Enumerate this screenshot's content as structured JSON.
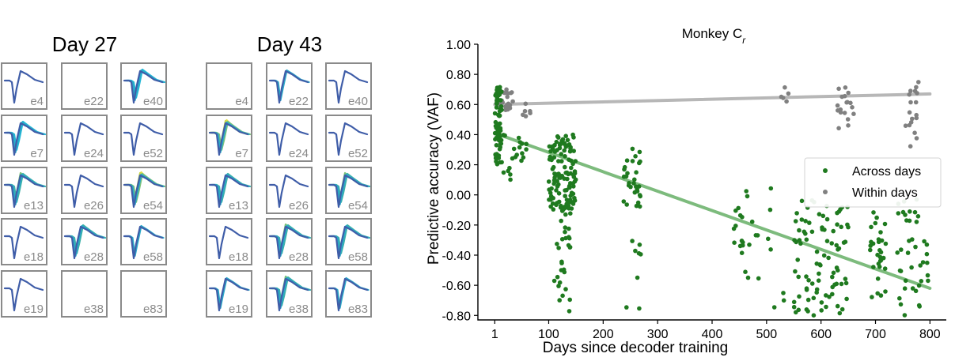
{
  "panels": [
    {
      "title": "Day 27",
      "cells": [
        {
          "label": "e4",
          "waves": [
            "#3f5da8"
          ]
        },
        {
          "label": "e22",
          "waves": []
        },
        {
          "label": "e40",
          "waves": [
            "#3f5da8",
            "#29a9c8",
            "#22b7d6"
          ]
        },
        {
          "label": "e7",
          "waves": [
            "#3f5da8",
            "#29a9c8",
            "#22b7d6"
          ]
        },
        {
          "label": "e24",
          "waves": [
            "#3f5da8"
          ]
        },
        {
          "label": "e52",
          "waves": [
            "#3f5da8"
          ]
        },
        {
          "label": "e13",
          "waves": [
            "#3f5da8",
            "#29a9c8",
            "#3bb0a8",
            "#7ac27a"
          ]
        },
        {
          "label": "e26",
          "waves": [
            "#3f5da8"
          ]
        },
        {
          "label": "e54",
          "waves": [
            "#3f5da8",
            "#29a9c8",
            "#7ac27a",
            "#c9d84a",
            "#e4e04a"
          ]
        },
        {
          "label": "e18",
          "waves": [
            "#3f5da8"
          ]
        },
        {
          "label": "e28",
          "waves": [
            "#3f5da8",
            "#29a9c8",
            "#3bb0a8"
          ]
        },
        {
          "label": "e58",
          "waves": [
            "#3f5da8",
            "#29a9c8"
          ]
        },
        {
          "label": "e19",
          "waves": [
            "#3f5da8"
          ]
        },
        {
          "label": "e38",
          "waves": []
        },
        {
          "label": "e83",
          "waves": []
        }
      ]
    },
    {
      "title": "Day 43",
      "cells": [
        {
          "label": "e4",
          "waves": []
        },
        {
          "label": "e22",
          "waves": [
            "#3f5da8",
            "#29a9c8"
          ]
        },
        {
          "label": "e40",
          "waves": [
            "#3f5da8"
          ]
        },
        {
          "label": "e7",
          "waves": [
            "#3f5da8",
            "#29a9c8",
            "#7ac27a",
            "#c9d84a",
            "#e4e04a"
          ]
        },
        {
          "label": "e24",
          "waves": [
            "#3f5da8"
          ]
        },
        {
          "label": "e52",
          "waves": [
            "#3f5da8"
          ]
        },
        {
          "label": "e13",
          "waves": [
            "#3f5da8",
            "#29a9c8",
            "#3bb0a8"
          ]
        },
        {
          "label": "e26",
          "waves": [
            "#3f5da8"
          ]
        },
        {
          "label": "e54",
          "waves": [
            "#3f5da8",
            "#29a9c8",
            "#3bb0a8",
            "#7ac27a"
          ]
        },
        {
          "label": "e18",
          "waves": [
            "#3f5da8"
          ]
        },
        {
          "label": "e28",
          "waves": [
            "#3f5da8",
            "#29a9c8",
            "#3bb0a8",
            "#7ac27a"
          ]
        },
        {
          "label": "e58",
          "waves": [
            "#3f5da8",
            "#29a9c8",
            "#3bb0a8"
          ]
        },
        {
          "label": "e19",
          "waves": [
            "#3f5da8",
            "#29a9c8"
          ]
        },
        {
          "label": "e38",
          "waves": [
            "#3f5da8",
            "#29a9c8",
            "#3bb0a8",
            "#7ac27a"
          ]
        },
        {
          "label": "e83",
          "waves": [
            "#3f5da8",
            "#29a9c8"
          ]
        }
      ]
    }
  ],
  "chart_data": {
    "type": "scatter",
    "title": "Monkey C",
    "title_subscript": "r",
    "xlabel": "Days since decoder training",
    "ylabel": "Predictive accuracy (VAF)",
    "xlim": [
      -30,
      830
    ],
    "ylim": [
      -0.83,
      1.0
    ],
    "xticks": [
      1,
      100,
      200,
      300,
      400,
      500,
      600,
      700,
      800
    ],
    "yticks": [
      -0.8,
      -0.6,
      -0.4,
      -0.2,
      0.0,
      0.2,
      0.4,
      0.6,
      0.8,
      1.0
    ],
    "ytick_labels": [
      "-0.80",
      "-0.60",
      "-0.40",
      "-0.20",
      "0.00",
      "0.20",
      "0.40",
      "0.60",
      "0.80",
      "1.00"
    ],
    "legend_position": "right",
    "series": [
      {
        "name": "Across days",
        "color": "#1f7a1f",
        "trend": {
          "x": [
            1,
            800
          ],
          "y": [
            0.41,
            -0.62
          ],
          "color": "#7dbb7d"
        },
        "clusters": [
          {
            "x": [
              1,
              14
            ],
            "y": [
              0.2,
              0.72
            ],
            "n": 70
          },
          {
            "x": [
              15,
              60
            ],
            "y": [
              0.1,
              0.4
            ],
            "n": 20
          },
          {
            "x": [
              100,
              150
            ],
            "y": [
              -0.1,
              0.4
            ],
            "n": 120
          },
          {
            "x": [
              110,
              140
            ],
            "y": [
              -0.78,
              -0.1
            ],
            "n": 30
          },
          {
            "x": [
              235,
              270
            ],
            "y": [
              -0.1,
              0.32
            ],
            "n": 30
          },
          {
            "x": [
              235,
              270
            ],
            "y": [
              -0.76,
              -0.25
            ],
            "n": 8
          },
          {
            "x": [
              440,
              470
            ],
            "y": [
              -0.4,
              -0.03
            ],
            "n": 12
          },
          {
            "x": [
              460,
              540
            ],
            "y": [
              -0.8,
              0.1
            ],
            "n": 16
          },
          {
            "x": [
              550,
              600
            ],
            "y": [
              -0.8,
              0.05
            ],
            "n": 45
          },
          {
            "x": [
              600,
              650
            ],
            "y": [
              -0.8,
              -0.05
            ],
            "n": 45
          },
          {
            "x": [
              690,
              720
            ],
            "y": [
              -0.7,
              -0.1
            ],
            "n": 30
          },
          {
            "x": [
              740,
              800
            ],
            "y": [
              -0.8,
              0.0
            ],
            "n": 40
          }
        ]
      },
      {
        "name": "Within days",
        "color": "#808080",
        "trend": {
          "x": [
            1,
            800
          ],
          "y": [
            0.6,
            0.67
          ],
          "color": "#b7b7b7"
        },
        "clusters": [
          {
            "x": [
              1,
              35
            ],
            "y": [
              0.55,
              0.7
            ],
            "n": 25
          },
          {
            "x": [
              45,
              75
            ],
            "y": [
              0.52,
              0.61
            ],
            "n": 6
          },
          {
            "x": [
              520,
              545
            ],
            "y": [
              0.62,
              0.73
            ],
            "n": 5
          },
          {
            "x": [
              630,
              660
            ],
            "y": [
              0.35,
              0.73
            ],
            "n": 18
          },
          {
            "x": [
              755,
              785
            ],
            "y": [
              0.32,
              0.75
            ],
            "n": 18
          }
        ]
      }
    ]
  }
}
